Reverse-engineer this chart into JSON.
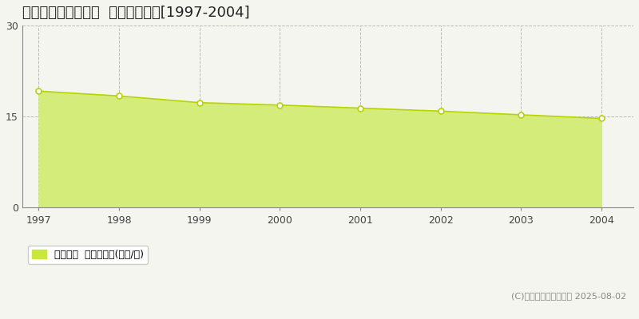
{
  "title": "札幌市南区川沿一条  基準地価推移[1997-2004]",
  "years": [
    1997,
    1998,
    1999,
    2000,
    2001,
    2002,
    2003,
    2004
  ],
  "values": [
    19.2,
    18.4,
    17.3,
    16.9,
    16.4,
    15.9,
    15.3,
    14.7
  ],
  "ylim": [
    0,
    30
  ],
  "yticks": [
    0,
    15,
    30
  ],
  "fill_color": "#d4ed7a",
  "line_color": "#b8d400",
  "marker_facecolor": "#ffffff",
  "marker_edgecolor": "#b8d400",
  "bg_color": "#f5f5f0",
  "plot_bg_color": "#f5f5f0",
  "grid_color": "#bbbbbb",
  "legend_label": "基準地価  平均坪単価(万円/坪)",
  "legend_color": "#c8e840",
  "copyright_text": "(C)土地価格ドットコム 2025-08-02",
  "title_fontsize": 13,
  "axis_fontsize": 9,
  "legend_fontsize": 9,
  "copyright_fontsize": 8
}
